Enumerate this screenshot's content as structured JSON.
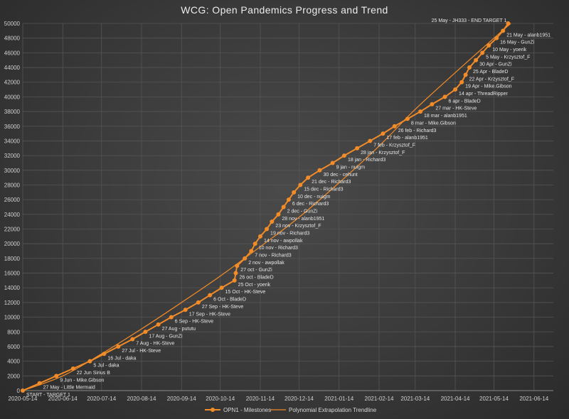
{
  "chart_data": {
    "type": "line",
    "title": "WCG: Open Pandemics Progress and Trend",
    "xlabel": "",
    "ylabel": "",
    "ylim": [
      0,
      50000
    ],
    "yticks": [
      0,
      2000,
      4000,
      6000,
      8000,
      10000,
      12000,
      14000,
      16000,
      18000,
      20000,
      22000,
      24000,
      26000,
      28000,
      30000,
      32000,
      34000,
      36000,
      38000,
      40000,
      42000,
      44000,
      46000,
      48000,
      50000
    ],
    "xlim": [
      "2020-05-14",
      "2021-06-29"
    ],
    "xticks": [
      "2020-05-14",
      "2020-06-14",
      "2020-07-14",
      "2020-08-14",
      "2020-09-14",
      "2020-10-14",
      "2020-11-14",
      "2020-12-14",
      "2021-01-14",
      "2021-02-14",
      "2021-03-14",
      "2021-04-14",
      "2021-05-14",
      "2021-06-14"
    ],
    "grid": true,
    "legend_position": "bottom",
    "colors": {
      "series": "#f28c28",
      "trend": "#f28c28",
      "grid": "#555555"
    },
    "series": [
      {
        "name": "OPN1 - Milestones",
        "points": [
          {
            "x": "2020-05-14",
            "y": 0,
            "label": "START - TARGET 1"
          },
          {
            "x": "2020-05-27",
            "y": 1000,
            "label": "27 May - Little Mermaid"
          },
          {
            "x": "2020-06-09",
            "y": 2000,
            "label": "9 Jun - Mike.Gibson"
          },
          {
            "x": "2020-06-22",
            "y": 3000,
            "label": "22 Jun Sirius B"
          },
          {
            "x": "2020-07-05",
            "y": 4000,
            "label": "5 Jul - daka"
          },
          {
            "x": "2020-07-16",
            "y": 5000,
            "label": "16 Jul - daka"
          },
          {
            "x": "2020-07-27",
            "y": 6000,
            "label": "27 Jul - HK-Steve"
          },
          {
            "x": "2020-08-07",
            "y": 7000,
            "label": "7 Aug - HK-Steve"
          },
          {
            "x": "2020-08-17",
            "y": 8000,
            "label": "17 Aug - GunZi"
          },
          {
            "x": "2020-08-27",
            "y": 9000,
            "label": "27 Aug - pututu"
          },
          {
            "x": "2020-09-06",
            "y": 10000,
            "label": "6 Sep - HK-Steve"
          },
          {
            "x": "2020-09-17",
            "y": 11000,
            "label": "17 Sep - HK-Steve"
          },
          {
            "x": "2020-09-27",
            "y": 12000,
            "label": "27 Sep - HK-Steve"
          },
          {
            "x": "2020-10-06",
            "y": 13000,
            "label": "6 Oct - BladeD"
          },
          {
            "x": "2020-10-15",
            "y": 14000,
            "label": "15 Oct - HK-Steve"
          },
          {
            "x": "2020-10-25",
            "y": 15000,
            "label": "25 Oct - yoerik"
          },
          {
            "x": "2020-10-26",
            "y": 16000,
            "label": "26 oct - BladeD"
          },
          {
            "x": "2020-10-27",
            "y": 17000,
            "label": "27 oct - GunZi"
          },
          {
            "x": "2020-11-02",
            "y": 18000,
            "label": "2 nov - awpollak"
          },
          {
            "x": "2020-11-07",
            "y": 19000,
            "label": "7 nov - Richard3"
          },
          {
            "x": "2020-11-10",
            "y": 20000,
            "label": "10 nov - Richard3"
          },
          {
            "x": "2020-11-14",
            "y": 21000,
            "label": "14 nov - awpollak"
          },
          {
            "x": "2020-11-19",
            "y": 22000,
            "label": "19 nov - Richard3"
          },
          {
            "x": "2020-11-23",
            "y": 23000,
            "label": "23 nov - Krzysztof_F"
          },
          {
            "x": "2020-11-28",
            "y": 24000,
            "label": "28 nov - alanb1951"
          },
          {
            "x": "2020-12-02",
            "y": 25000,
            "label": "2 dec - GunZi"
          },
          {
            "x": "2020-12-06",
            "y": 26000,
            "label": "6 dec - Richard3"
          },
          {
            "x": "2020-12-10",
            "y": 27000,
            "label": "10 dec - nuigm"
          },
          {
            "x": "2020-12-15",
            "y": 28000,
            "label": "15 dec - Richard3"
          },
          {
            "x": "2020-12-21",
            "y": 29000,
            "label": "21 dec - Richard3"
          },
          {
            "x": "2020-12-30",
            "y": 30000,
            "label": "30 dec - cehunt"
          },
          {
            "x": "2021-01-09",
            "y": 31000,
            "label": "9 jan - nuigm"
          },
          {
            "x": "2021-01-18",
            "y": 32000,
            "label": "18 jan - Richard3"
          },
          {
            "x": "2021-01-28",
            "y": 33000,
            "label": "28 jan - Krzysztof_F"
          },
          {
            "x": "2021-02-07",
            "y": 34000,
            "label": "7 feb - Krzysztof_F"
          },
          {
            "x": "2021-02-17",
            "y": 35000,
            "label": "17 feb - alanb1951"
          },
          {
            "x": "2021-02-26",
            "y": 36000,
            "label": "26 feb - Richard3"
          },
          {
            "x": "2021-03-08",
            "y": 37000,
            "label": "8 mar - Mike.Gibson"
          },
          {
            "x": "2021-03-18",
            "y": 38000,
            "label": "18 mar - alanb1951"
          },
          {
            "x": "2021-03-27",
            "y": 39000,
            "label": "27 mar - HK-Steve"
          },
          {
            "x": "2021-04-06",
            "y": 40000,
            "label": "6 apr - BladeD"
          },
          {
            "x": "2021-04-14",
            "y": 41000,
            "label": "14 apr - ThreadRipper"
          },
          {
            "x": "2021-04-19",
            "y": 42000,
            "label": "19 Apr - Mike.Gibson"
          },
          {
            "x": "2021-04-22",
            "y": 43000,
            "label": "22 Apr - Krzysztof_F"
          },
          {
            "x": "2021-04-25",
            "y": 44000,
            "label": "25 Apr - BladeD"
          },
          {
            "x": "2021-04-30",
            "y": 45000,
            "label": "30 Apr - GunZi"
          },
          {
            "x": "2021-05-05",
            "y": 46000,
            "label": "5 May - Krzysztof_F"
          },
          {
            "x": "2021-05-10",
            "y": 47000,
            "label": "10 May - yoerik"
          },
          {
            "x": "2021-05-16",
            "y": 48000,
            "label": "16 May - GunZi"
          },
          {
            "x": "2021-05-21",
            "y": 49000,
            "label": "21 May - alanb1951"
          },
          {
            "x": "2021-05-25",
            "y": 50000,
            "label": "25 May - JH333 - END TARGET 1"
          }
        ]
      },
      {
        "name": "Polynomial Extrapolation Trendline",
        "kind": "polynomial-trend",
        "points": [
          {
            "x": "2020-05-14",
            "y": 0
          },
          {
            "x": "2020-06-14",
            "y": 2000
          },
          {
            "x": "2020-07-14",
            "y": 5000
          },
          {
            "x": "2020-08-14",
            "y": 8400
          },
          {
            "x": "2020-09-14",
            "y": 12000
          },
          {
            "x": "2020-10-14",
            "y": 15600
          },
          {
            "x": "2020-11-14",
            "y": 19600
          },
          {
            "x": "2020-12-14",
            "y": 23600
          },
          {
            "x": "2021-01-14",
            "y": 28300
          },
          {
            "x": "2021-02-14",
            "y": 33300
          },
          {
            "x": "2021-03-14",
            "y": 38300
          },
          {
            "x": "2021-04-14",
            "y": 43300
          },
          {
            "x": "2021-05-14",
            "y": 48000
          },
          {
            "x": "2021-05-27",
            "y": 50000
          }
        ]
      }
    ]
  }
}
